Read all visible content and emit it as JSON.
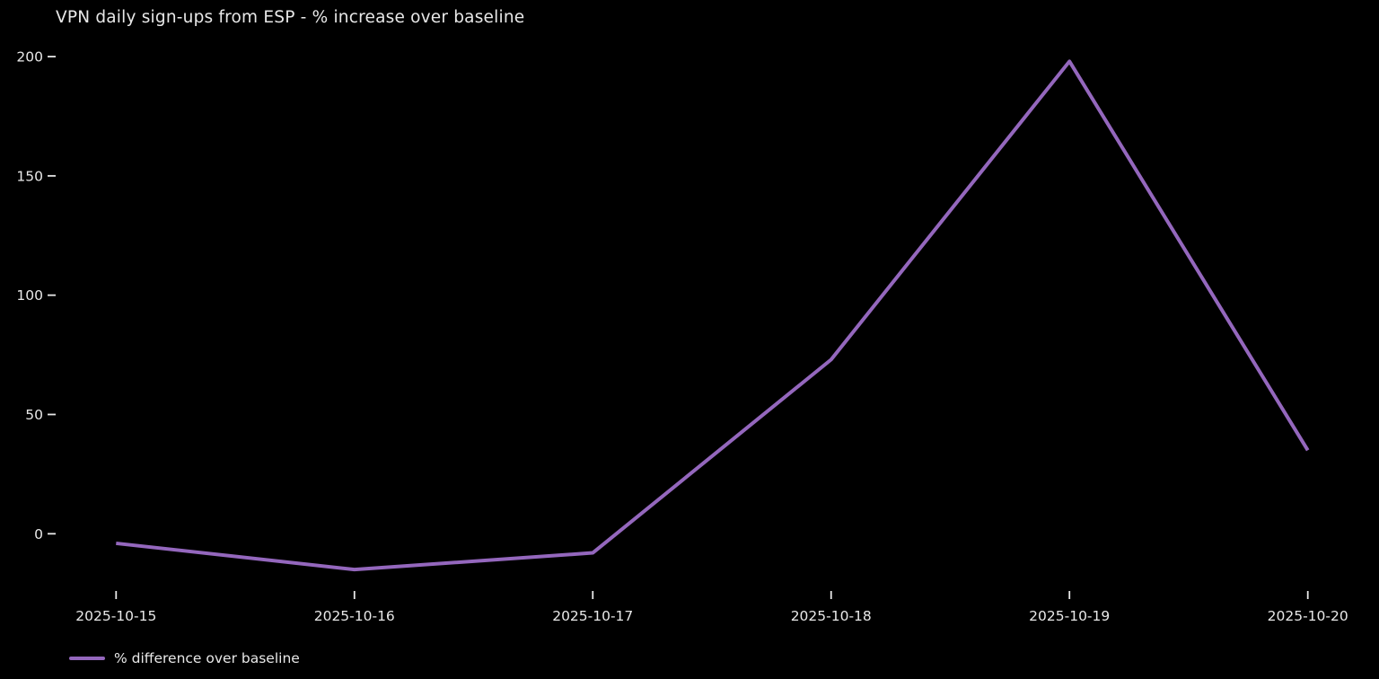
{
  "chart_data": {
    "type": "line",
    "title": "VPN daily sign-ups from ESP - % increase over baseline",
    "x": [
      "2025-10-15",
      "2025-10-16",
      "2025-10-17",
      "2025-10-18",
      "2025-10-19",
      "2025-10-20"
    ],
    "series": [
      {
        "name": "% difference over baseline",
        "color": "#9467bd",
        "values": [
          -4,
          -15,
          -8,
          73,
          198,
          35
        ]
      }
    ],
    "xlabel": "",
    "ylabel": "",
    "yticks": [
      0,
      50,
      100,
      150,
      200
    ],
    "ylim": [
      -27,
      212
    ],
    "grid": false,
    "legend": {
      "position": "lower-left",
      "entries": [
        "% difference over baseline"
      ]
    },
    "colors": {
      "background": "#000000",
      "text": "#e8e8e8",
      "line": "#9467bd"
    }
  }
}
